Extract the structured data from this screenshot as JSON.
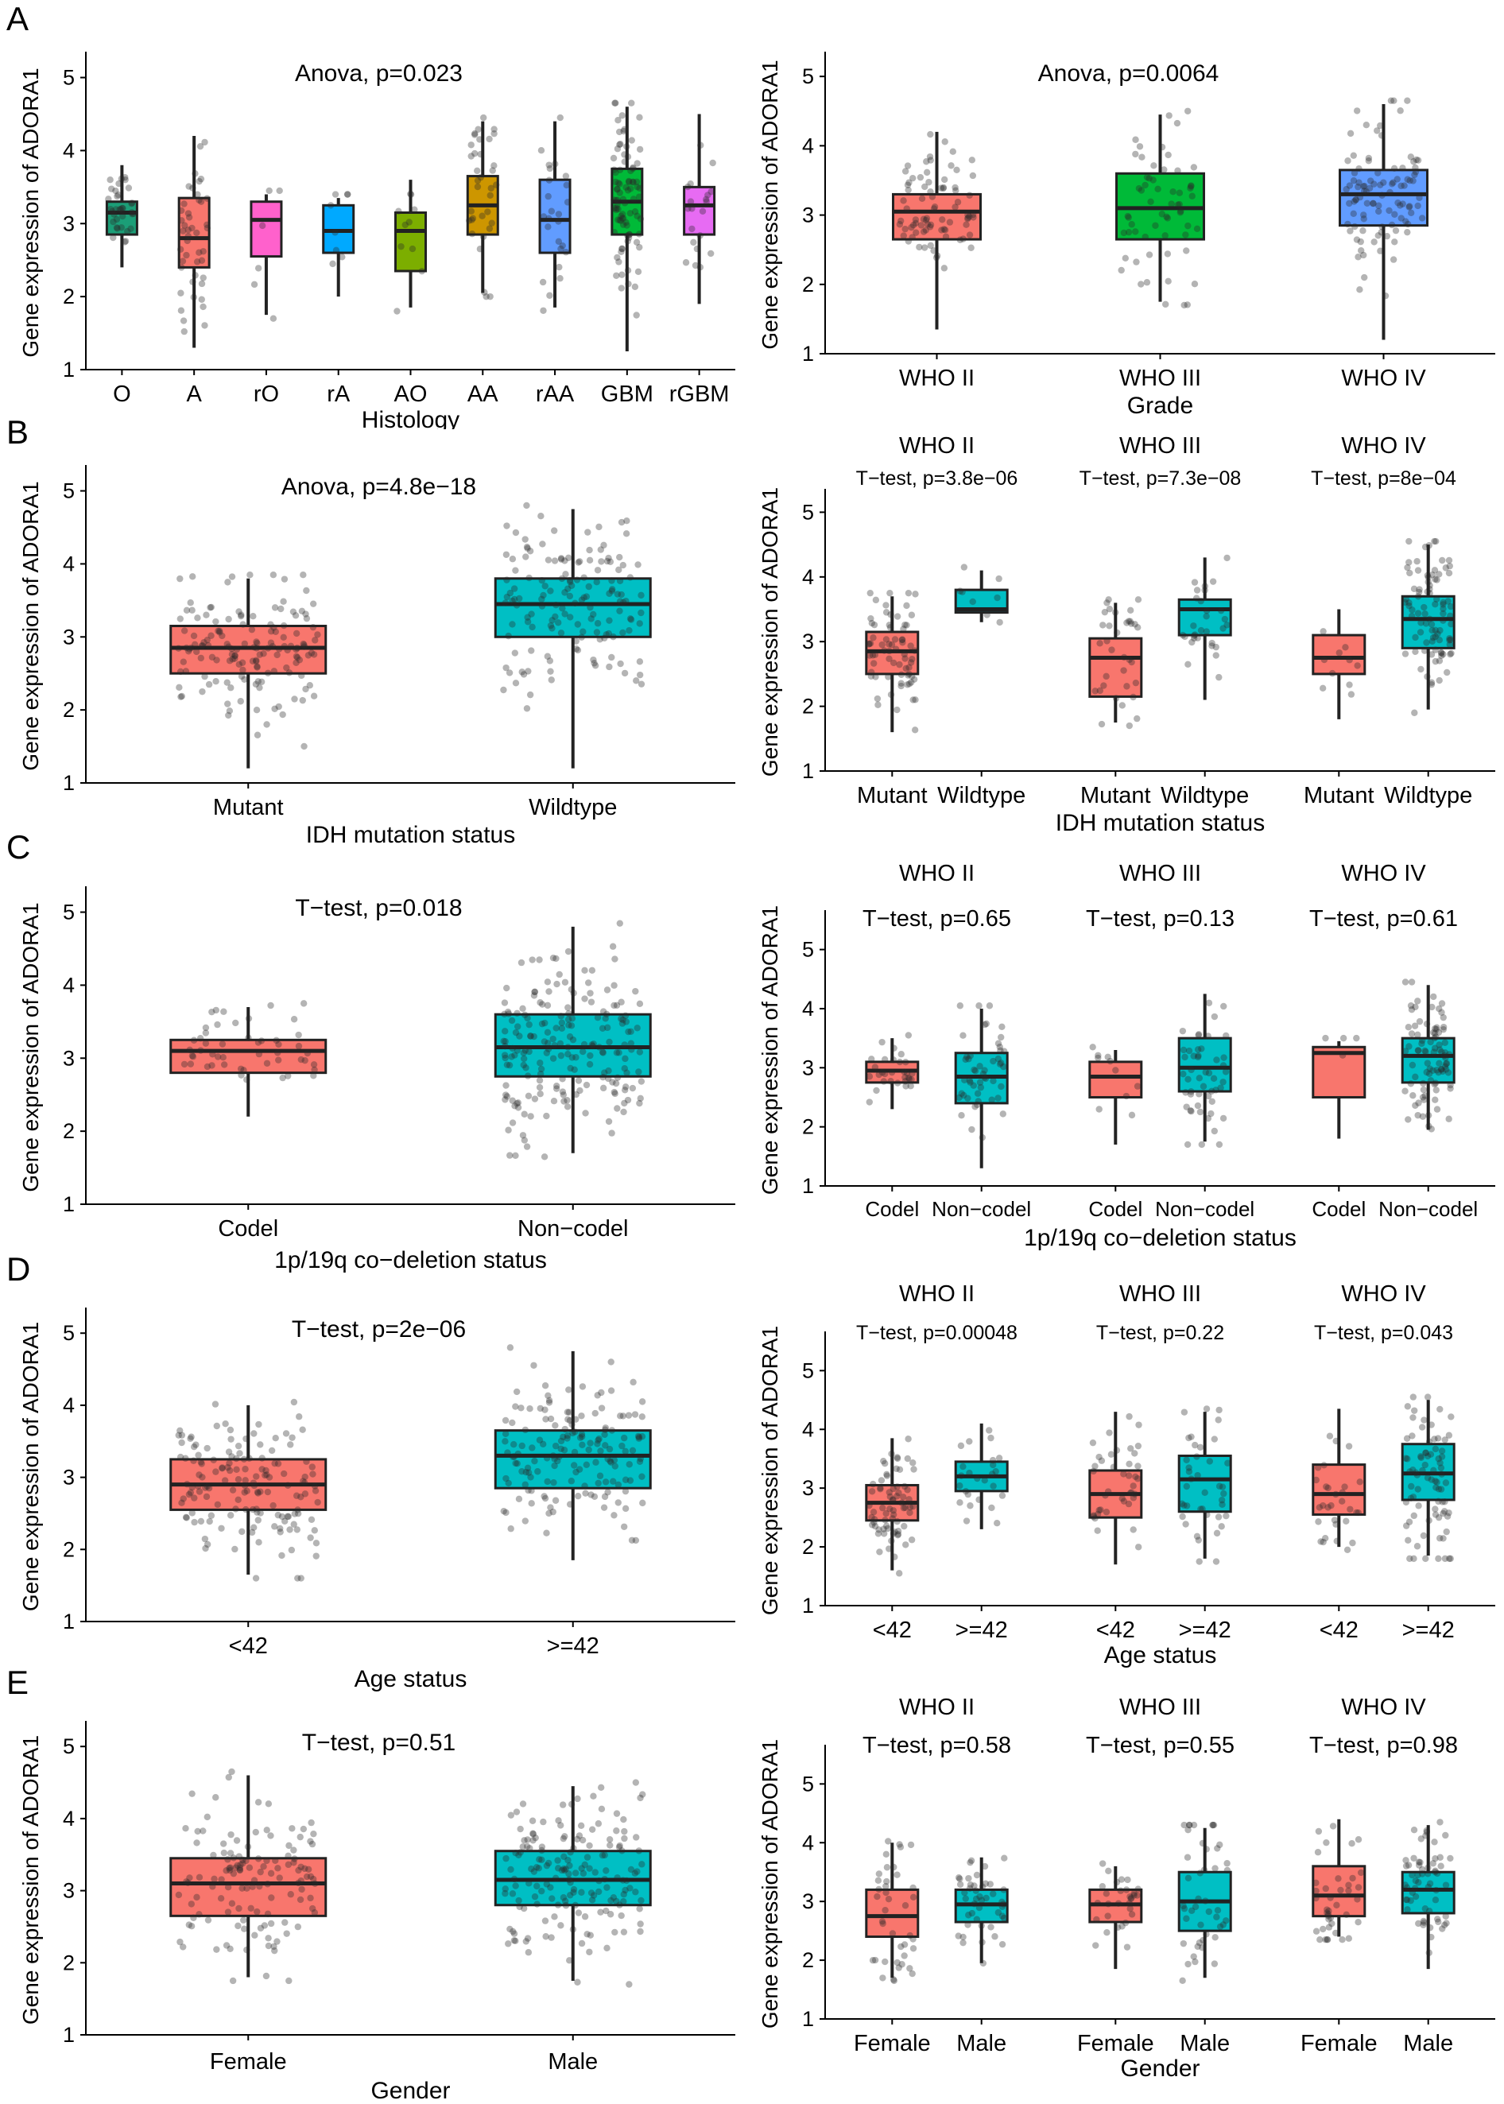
{
  "colors": {
    "red": "#F8766D",
    "teal": "#00BFC4",
    "hist": [
      "#1B9E77",
      "#F8766D",
      "#FF61CC",
      "#00A9FF",
      "#7CAE00",
      "#CD9600",
      "#619CFF",
      "#00BA38",
      "#E76BF3"
    ],
    "grade": [
      "#F8766D",
      "#00BA38",
      "#619CFF"
    ]
  },
  "panel_labels": [
    "A",
    "B",
    "C",
    "D",
    "E"
  ],
  "chart_data": [
    {
      "id": "A-left",
      "type": "boxplot",
      "ylabel": "Gene expression of ADORA1",
      "xlabel": "Histology",
      "ylim": [
        1,
        5.3
      ],
      "yticks": [
        1,
        2,
        3,
        4,
        5
      ],
      "categories": [
        "O",
        "A",
        "rO",
        "rA",
        "AO",
        "AA",
        "rAA",
        "GBM",
        "rGBM"
      ],
      "boxes": [
        {
          "q1": 2.85,
          "median": 3.15,
          "q3": 3.3,
          "lo": 2.4,
          "hi": 3.8,
          "n": 35,
          "color": "#1B9E77"
        },
        {
          "q1": 2.4,
          "median": 2.8,
          "q3": 3.35,
          "lo": 1.3,
          "hi": 4.2,
          "n": 45,
          "color": "#F8766D"
        },
        {
          "q1": 2.55,
          "median": 3.05,
          "q3": 3.3,
          "lo": 1.75,
          "hi": 3.4,
          "n": 6,
          "color": "#FF61CC"
        },
        {
          "q1": 2.6,
          "median": 2.9,
          "q3": 3.25,
          "lo": 2.0,
          "hi": 3.35,
          "n": 8,
          "color": "#00A9FF"
        },
        {
          "q1": 2.35,
          "median": 2.9,
          "q3": 3.15,
          "lo": 1.85,
          "hi": 3.6,
          "n": 10,
          "color": "#7CAE00"
        },
        {
          "q1": 2.85,
          "median": 3.25,
          "q3": 3.65,
          "lo": 2.05,
          "hi": 4.4,
          "n": 35,
          "color": "#CD9600"
        },
        {
          "q1": 2.6,
          "median": 3.05,
          "q3": 3.6,
          "lo": 1.85,
          "hi": 4.4,
          "n": 25,
          "color": "#619CFF"
        },
        {
          "q1": 2.85,
          "median": 3.3,
          "q3": 3.75,
          "lo": 1.25,
          "hi": 4.6,
          "n": 90,
          "color": "#00BA38"
        },
        {
          "q1": 2.85,
          "median": 3.25,
          "q3": 3.5,
          "lo": 1.9,
          "hi": 4.5,
          "n": 20,
          "color": "#E76BF3"
        }
      ],
      "annotations": [
        {
          "text": "Anova, p=0.023"
        }
      ]
    },
    {
      "id": "A-right",
      "type": "boxplot",
      "ylabel": "Gene expression of ADORA1",
      "xlabel": "Grade",
      "ylim": [
        1,
        5.3
      ],
      "yticks": [
        1,
        2,
        3,
        4,
        5
      ],
      "categories": [
        "WHO II",
        "WHO III",
        "WHO IV"
      ],
      "boxes": [
        {
          "q1": 2.65,
          "median": 3.05,
          "q3": 3.3,
          "lo": 1.35,
          "hi": 4.2,
          "n": 80,
          "color": "#F8766D"
        },
        {
          "q1": 2.65,
          "median": 3.1,
          "q3": 3.6,
          "lo": 1.75,
          "hi": 4.45,
          "n": 60,
          "color": "#00BA38"
        },
        {
          "q1": 2.85,
          "median": 3.3,
          "q3": 3.65,
          "lo": 1.2,
          "hi": 4.6,
          "n": 100,
          "color": "#619CFF"
        }
      ],
      "annotations": [
        {
          "text": "Anova, p=0.0064"
        }
      ]
    },
    {
      "id": "B-left",
      "type": "boxplot",
      "ylabel": "Gene expression of ADORA1",
      "xlabel": "IDH mutation status",
      "ylim": [
        1,
        5.3
      ],
      "yticks": [
        1,
        2,
        3,
        4,
        5
      ],
      "categories": [
        "Mutant",
        "Wildtype"
      ],
      "boxes": [
        {
          "q1": 2.5,
          "median": 2.85,
          "q3": 3.15,
          "lo": 1.2,
          "hi": 3.8,
          "n": 150,
          "color": "#F8766D"
        },
        {
          "q1": 3.0,
          "median": 3.45,
          "q3": 3.8,
          "lo": 1.2,
          "hi": 4.75,
          "n": 150,
          "color": "#00BFC4"
        }
      ],
      "annotations": [
        {
          "text": "Anova, p=4.8e−18"
        }
      ]
    },
    {
      "id": "B-right",
      "type": "boxplot",
      "ylabel": "Gene expression of ADORA1",
      "xlabel": "IDH mutation status",
      "ylim": [
        1,
        5.3
      ],
      "yticks": [
        1,
        2,
        3,
        4,
        5
      ],
      "categories": [
        "Mutant",
        "Wildtype",
        "Mutant",
        "Wildtype",
        "Mutant",
        "Wildtype"
      ],
      "groups": [
        {
          "label": "WHO II",
          "test": "T−test, p=3.8e−06"
        },
        {
          "label": "WHO III",
          "test": "T−test, p=7.3e−08"
        },
        {
          "label": "WHO IV",
          "test": "T−test, p=8e−04"
        }
      ],
      "boxes": [
        {
          "q1": 2.5,
          "median": 2.85,
          "q3": 3.15,
          "lo": 1.6,
          "hi": 3.7,
          "n": 70,
          "color": "#F8766D"
        },
        {
          "q1": 3.45,
          "median": 3.5,
          "q3": 3.8,
          "lo": 3.3,
          "hi": 4.1,
          "n": 8,
          "color": "#00BFC4"
        },
        {
          "q1": 2.15,
          "median": 2.75,
          "q3": 3.05,
          "lo": 1.75,
          "hi": 3.6,
          "n": 35,
          "color": "#F8766D"
        },
        {
          "q1": 3.1,
          "median": 3.5,
          "q3": 3.65,
          "lo": 2.1,
          "hi": 4.3,
          "n": 30,
          "color": "#00BFC4"
        },
        {
          "q1": 2.5,
          "median": 2.75,
          "q3": 3.1,
          "lo": 1.8,
          "hi": 3.5,
          "n": 10,
          "color": "#F8766D"
        },
        {
          "q1": 2.9,
          "median": 3.35,
          "q3": 3.7,
          "lo": 1.95,
          "hi": 4.5,
          "n": 90,
          "color": "#00BFC4"
        }
      ],
      "annotations": []
    },
    {
      "id": "C-left",
      "type": "boxplot",
      "ylabel": "Gene expression of ADORA1",
      "xlabel": "1p/19q co−deletion status",
      "ylim": [
        1,
        5.3
      ],
      "yticks": [
        1,
        2,
        3,
        4,
        5
      ],
      "categories": [
        "Codel",
        "Non−codel"
      ],
      "boxes": [
        {
          "q1": 2.8,
          "median": 3.1,
          "q3": 3.25,
          "lo": 2.2,
          "hi": 3.7,
          "n": 50,
          "color": "#F8766D"
        },
        {
          "q1": 2.75,
          "median": 3.15,
          "q3": 3.6,
          "lo": 1.7,
          "hi": 4.8,
          "n": 200,
          "color": "#00BFC4"
        }
      ],
      "annotations": [
        {
          "text": "T−test, p=0.018"
        }
      ]
    },
    {
      "id": "C-right",
      "type": "boxplot",
      "ylabel": "Gene expression of ADORA1",
      "xlabel": "1p/19q co−deletion status",
      "ylim": [
        1,
        5.6
      ],
      "yticks": [
        1,
        2,
        3,
        4,
        5
      ],
      "categories": [
        "Codel",
        "Non−codel",
        "Codel",
        "Non−codel",
        "Codel",
        "Non−codel"
      ],
      "groups": [
        {
          "label": "WHO II",
          "test": "T−test, p=0.65"
        },
        {
          "label": "WHO III",
          "test": "T−test, p=0.13"
        },
        {
          "label": "WHO IV",
          "test": "T−test, p=0.61"
        }
      ],
      "boxes": [
        {
          "q1": 2.75,
          "median": 2.95,
          "q3": 3.1,
          "lo": 2.3,
          "hi": 3.5,
          "n": 30,
          "color": "#F8766D"
        },
        {
          "q1": 2.4,
          "median": 2.85,
          "q3": 3.25,
          "lo": 1.3,
          "hi": 4.0,
          "n": 50,
          "color": "#00BFC4"
        },
        {
          "q1": 2.5,
          "median": 2.85,
          "q3": 3.1,
          "lo": 1.7,
          "hi": 3.3,
          "n": 10,
          "color": "#F8766D"
        },
        {
          "q1": 2.6,
          "median": 3.0,
          "q3": 3.5,
          "lo": 1.75,
          "hi": 4.25,
          "n": 50,
          "color": "#00BFC4"
        },
        {
          "q1": 2.5,
          "median": 3.25,
          "q3": 3.35,
          "lo": 1.8,
          "hi": 3.45,
          "n": 4,
          "color": "#F8766D"
        },
        {
          "q1": 2.75,
          "median": 3.2,
          "q3": 3.5,
          "lo": 1.95,
          "hi": 4.4,
          "n": 90,
          "color": "#00BFC4"
        }
      ],
      "annotations": []
    },
    {
      "id": "D-left",
      "type": "boxplot",
      "ylabel": "Gene expression of ADORA1",
      "xlabel": "Age status",
      "ylim": [
        1,
        5.3
      ],
      "yticks": [
        1,
        2,
        3,
        4,
        5
      ],
      "categories": [
        "<42",
        ">=42"
      ],
      "boxes": [
        {
          "q1": 2.55,
          "median": 2.9,
          "q3": 3.25,
          "lo": 1.65,
          "hi": 4.0,
          "n": 150,
          "color": "#F8766D"
        },
        {
          "q1": 2.85,
          "median": 3.3,
          "q3": 3.65,
          "lo": 1.85,
          "hi": 4.75,
          "n": 160,
          "color": "#00BFC4"
        }
      ],
      "annotations": [
        {
          "text": "T−test, p=2e−06"
        }
      ]
    },
    {
      "id": "D-right",
      "type": "boxplot",
      "ylabel": "Gene expression of ADORA1",
      "xlabel": "Age status",
      "ylim": [
        1,
        5.6
      ],
      "yticks": [
        1,
        2,
        3,
        4,
        5
      ],
      "categories": [
        "<42",
        ">=42",
        "<42",
        ">=42",
        "<42",
        ">=42"
      ],
      "groups": [
        {
          "label": "WHO II",
          "test": "T−test, p=0.00048"
        },
        {
          "label": "WHO III",
          "test": "T−test, p=0.22"
        },
        {
          "label": "WHO IV",
          "test": "T−test, p=0.043"
        }
      ],
      "boxes": [
        {
          "q1": 2.45,
          "median": 2.75,
          "q3": 3.05,
          "lo": 1.6,
          "hi": 3.85,
          "n": 70,
          "color": "#F8766D"
        },
        {
          "q1": 2.95,
          "median": 3.2,
          "q3": 3.45,
          "lo": 2.3,
          "hi": 4.1,
          "n": 25,
          "color": "#00BFC4"
        },
        {
          "q1": 2.5,
          "median": 2.9,
          "q3": 3.3,
          "lo": 1.7,
          "hi": 4.3,
          "n": 40,
          "color": "#F8766D"
        },
        {
          "q1": 2.6,
          "median": 3.15,
          "q3": 3.55,
          "lo": 1.8,
          "hi": 4.3,
          "n": 40,
          "color": "#00BFC4"
        },
        {
          "q1": 2.55,
          "median": 2.9,
          "q3": 3.4,
          "lo": 2.0,
          "hi": 4.35,
          "n": 30,
          "color": "#F8766D"
        },
        {
          "q1": 2.8,
          "median": 3.25,
          "q3": 3.75,
          "lo": 1.85,
          "hi": 4.5,
          "n": 80,
          "color": "#00BFC4"
        }
      ],
      "annotations": []
    },
    {
      "id": "E-left",
      "type": "boxplot",
      "ylabel": "Gene expression of ADORA1",
      "xlabel": "Gender",
      "ylim": [
        1,
        5.3
      ],
      "yticks": [
        1,
        2,
        3,
        4,
        5
      ],
      "categories": [
        "Female",
        "Male"
      ],
      "boxes": [
        {
          "q1": 2.65,
          "median": 3.1,
          "q3": 3.45,
          "lo": 1.8,
          "hi": 4.6,
          "n": 130,
          "color": "#F8766D"
        },
        {
          "q1": 2.8,
          "median": 3.15,
          "q3": 3.55,
          "lo": 1.75,
          "hi": 4.45,
          "n": 170,
          "color": "#00BFC4"
        }
      ],
      "annotations": [
        {
          "text": "T−test, p=0.51"
        }
      ]
    },
    {
      "id": "E-right",
      "type": "boxplot",
      "ylabel": "Gene expression of ADORA1",
      "xlabel": "Gender",
      "ylim": [
        1,
        5.6
      ],
      "yticks": [
        1,
        2,
        3,
        4,
        5
      ],
      "categories": [
        "Female",
        "Male",
        "Female",
        "Male",
        "Female",
        "Male"
      ],
      "groups": [
        {
          "label": "WHO II",
          "test": "T−test, p=0.58"
        },
        {
          "label": "WHO III",
          "test": "T−test, p=0.55"
        },
        {
          "label": "WHO IV",
          "test": "T−test, p=0.98"
        }
      ],
      "boxes": [
        {
          "q1": 2.4,
          "median": 2.75,
          "q3": 3.2,
          "lo": 1.7,
          "hi": 4.0,
          "n": 40,
          "color": "#F8766D"
        },
        {
          "q1": 2.65,
          "median": 2.95,
          "q3": 3.2,
          "lo": 1.95,
          "hi": 3.75,
          "n": 45,
          "color": "#00BFC4"
        },
        {
          "q1": 2.65,
          "median": 2.95,
          "q3": 3.2,
          "lo": 1.85,
          "hi": 3.6,
          "n": 30,
          "color": "#F8766D"
        },
        {
          "q1": 2.5,
          "median": 3.0,
          "q3": 3.5,
          "lo": 1.7,
          "hi": 4.25,
          "n": 45,
          "color": "#00BFC4"
        },
        {
          "q1": 2.75,
          "median": 3.1,
          "q3": 3.6,
          "lo": 2.4,
          "hi": 4.4,
          "n": 40,
          "color": "#F8766D"
        },
        {
          "q1": 2.8,
          "median": 3.2,
          "q3": 3.5,
          "lo": 1.85,
          "hi": 4.3,
          "n": 60,
          "color": "#00BFC4"
        }
      ],
      "annotations": []
    }
  ]
}
